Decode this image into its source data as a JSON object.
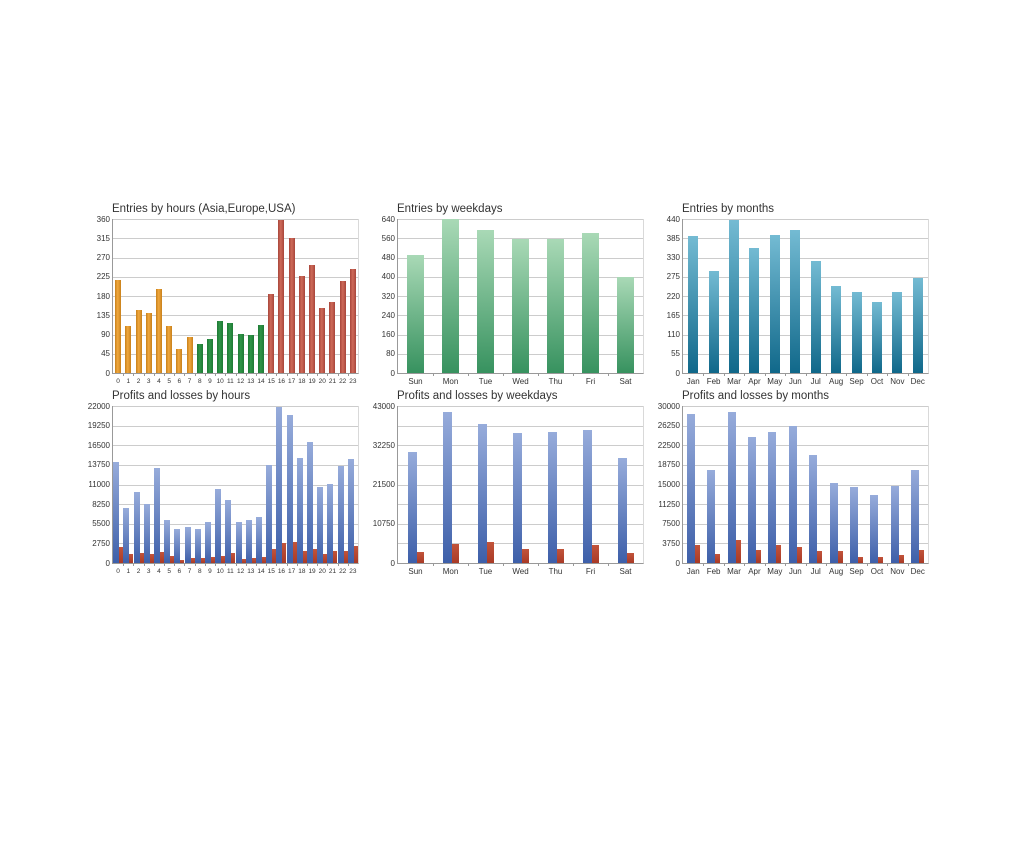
{
  "style": {
    "background": "#ffffff",
    "grid_color": "#cccccc",
    "axis_color": "#999999",
    "title_color": "#333333",
    "label_color": "#333333"
  },
  "chart_data": [
    {
      "type": "bar",
      "title": "Entries by hours (Asia,Europe,USA)",
      "xlabel": "",
      "ylabel": "",
      "grid": true,
      "legend": "none",
      "categories": [
        "0",
        "1",
        "2",
        "3",
        "4",
        "5",
        "6",
        "7",
        "8",
        "9",
        "10",
        "11",
        "12",
        "13",
        "14",
        "15",
        "16",
        "17",
        "18",
        "19",
        "20",
        "21",
        "22",
        "23"
      ],
      "ylim": [
        0,
        360
      ],
      "ytick_values": [
        0,
        45,
        90,
        135,
        180,
        225,
        270,
        315,
        360
      ],
      "ytick_labels": [
        "0",
        "45",
        "90",
        "135",
        "180",
        "225",
        "270",
        "315",
        "360"
      ],
      "series": [
        {
          "name": "Entries",
          "values": [
            218,
            109,
            147,
            141,
            197,
            109,
            57,
            84,
            67,
            79,
            122,
            118,
            92,
            89,
            112,
            184,
            357,
            315,
            227,
            253,
            151,
            167,
            214,
            243
          ],
          "gradient_direction": "horizontal",
          "groups": [
            {
              "label": "Asia",
              "from": 0,
              "to": 7,
              "color_center": "#F0A83E",
              "color_edge": "#C8801A"
            },
            {
              "label": "Europe",
              "from": 8,
              "to": 14,
              "color_center": "#2F9447",
              "color_edge": "#1E7A35"
            },
            {
              "label": "USA",
              "from": 15,
              "to": 23,
              "color_center": "#CE6A59",
              "color_edge": "#A8453A"
            }
          ]
        }
      ]
    },
    {
      "type": "bar",
      "title": "Entries by weekdays",
      "xlabel": "",
      "ylabel": "",
      "grid": true,
      "legend": "none",
      "categories": [
        "Sun",
        "Mon",
        "Tue",
        "Wed",
        "Thu",
        "Fri",
        "Sat"
      ],
      "ylim": [
        0,
        640
      ],
      "ytick_values": [
        0,
        80,
        160,
        240,
        320,
        400,
        480,
        560,
        640
      ],
      "ytick_labels": [
        "0",
        "80",
        "160",
        "240",
        "320",
        "400",
        "480",
        "560",
        "640"
      ],
      "series": [
        {
          "name": "Entries",
          "values": [
            490,
            640,
            596,
            555,
            558,
            583,
            400
          ],
          "gradient_direction": "vertical",
          "color_top": "#A9D9B6",
          "color_bottom": "#37925F"
        }
      ]
    },
    {
      "type": "bar",
      "title": "Entries by months",
      "xlabel": "",
      "ylabel": "",
      "grid": true,
      "legend": "none",
      "categories": [
        "Jan",
        "Feb",
        "Mar",
        "Apr",
        "May",
        "Jun",
        "Jul",
        "Aug",
        "Sep",
        "Oct",
        "Nov",
        "Dec"
      ],
      "ylim": [
        0,
        440
      ],
      "ytick_values": [
        0,
        55,
        110,
        165,
        220,
        275,
        330,
        385,
        440
      ],
      "ytick_labels": [
        "0",
        "55",
        "110",
        "165",
        "220",
        "275",
        "330",
        "385",
        "440"
      ],
      "series": [
        {
          "name": "Entries",
          "values": [
            390,
            292,
            437,
            357,
            394,
            409,
            320,
            248,
            230,
            202,
            231,
            270
          ],
          "gradient_direction": "vertical",
          "color_top": "#74BBD3",
          "color_bottom": "#10688A"
        }
      ]
    },
    {
      "type": "grouped-bar",
      "title": "Profits and losses by hours",
      "xlabel": "",
      "ylabel": "",
      "grid": true,
      "legend": "none",
      "categories": [
        "0",
        "1",
        "2",
        "3",
        "4",
        "5",
        "6",
        "7",
        "8",
        "9",
        "10",
        "11",
        "12",
        "13",
        "14",
        "15",
        "16",
        "17",
        "18",
        "19",
        "20",
        "21",
        "22",
        "23"
      ],
      "ylim": [
        0,
        22000
      ],
      "ytick_values": [
        0,
        2750,
        5500,
        8250,
        11000,
        13750,
        16500,
        19250,
        22000
      ],
      "ytick_labels": [
        "0",
        "2750",
        "5500",
        "8250",
        "11000",
        "13750",
        "16500",
        "19250",
        "22000"
      ],
      "series": [
        {
          "name": "Profits",
          "values": [
            14100,
            7700,
            9900,
            8200,
            13300,
            6000,
            4800,
            5000,
            4700,
            5800,
            10300,
            8800,
            5700,
            6000,
            6500,
            13700,
            21900,
            20800,
            14700,
            17000,
            10700,
            11100,
            13600,
            14600
          ],
          "gradient_direction": "vertical",
          "color_top": "#97ACDB",
          "color_bottom": "#3D5FA9"
        },
        {
          "name": "Losses",
          "values": [
            2300,
            1200,
            1400,
            1300,
            1600,
            1000,
            450,
            760,
            670,
            900,
            950,
            1400,
            520,
            670,
            810,
            1900,
            2850,
            2950,
            1620,
            2000,
            1240,
            1620,
            1700,
            2400
          ],
          "gradient_direction": "vertical",
          "color_top": "#C2543B",
          "color_bottom": "#A93A26"
        }
      ]
    },
    {
      "type": "grouped-bar",
      "title": "Profits and losses by weekdays",
      "xlabel": "",
      "ylabel": "",
      "grid": true,
      "legend": "none",
      "categories": [
        "Sun",
        "Mon",
        "Tue",
        "Wed",
        "Thu",
        "Fri",
        "Sat"
      ],
      "ylim": [
        0,
        43000
      ],
      "ytick_values": [
        0,
        5375,
        10750,
        16125,
        21500,
        26875,
        32250,
        37625,
        43000
      ],
      "ytick_labels": [
        "0",
        "",
        "10750",
        "",
        "21500",
        "",
        "32250",
        "",
        "43000"
      ],
      "series": [
        {
          "name": "Profits",
          "values": [
            30400,
            41400,
            38100,
            35700,
            35900,
            36500,
            28800
          ],
          "gradient_direction": "vertical",
          "color_top": "#97ACDB",
          "color_bottom": "#3D5FA9"
        },
        {
          "name": "Losses",
          "values": [
            3000,
            5100,
            5800,
            3900,
            3800,
            4800,
            2700
          ],
          "gradient_direction": "vertical",
          "color_top": "#C2543B",
          "color_bottom": "#A93A26"
        }
      ]
    },
    {
      "type": "grouped-bar",
      "title": "Profits and losses by months",
      "xlabel": "",
      "ylabel": "",
      "grid": true,
      "legend": "none",
      "categories": [
        "Jan",
        "Feb",
        "Mar",
        "Apr",
        "May",
        "Jun",
        "Jul",
        "Aug",
        "Sep",
        "Oct",
        "Nov",
        "Dec"
      ],
      "ylim": [
        0,
        30000
      ],
      "ytick_values": [
        0,
        3750,
        7500,
        11250,
        15000,
        18750,
        22500,
        26250,
        30000
      ],
      "ytick_labels": [
        "0",
        "3750",
        "7500",
        "11250",
        "15000",
        "18750",
        "22500",
        "26250",
        "30000"
      ],
      "series": [
        {
          "name": "Profits",
          "values": [
            28500,
            17800,
            28900,
            24100,
            25100,
            26200,
            20600,
            15300,
            14600,
            12900,
            14800,
            17700
          ],
          "gradient_direction": "vertical",
          "color_top": "#97ACDB",
          "color_bottom": "#3D5FA9"
        },
        {
          "name": "Losses",
          "values": [
            3500,
            1700,
            4400,
            2500,
            3400,
            3100,
            2200,
            2300,
            1200,
            1100,
            1500,
            2500
          ],
          "gradient_direction": "vertical",
          "color_top": "#C2543B",
          "color_bottom": "#A93A26"
        }
      ]
    }
  ]
}
